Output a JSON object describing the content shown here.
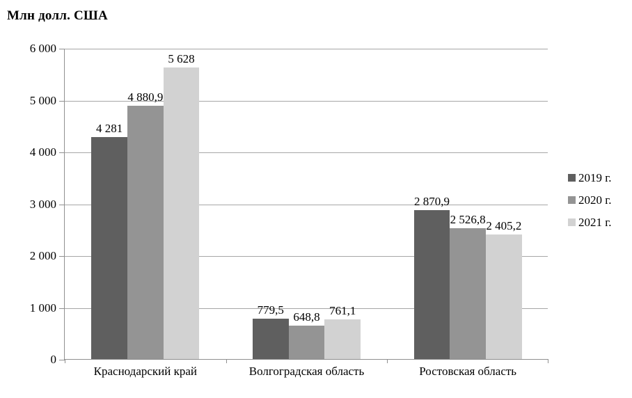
{
  "title": "Млн долл. США",
  "chart_data": {
    "type": "bar",
    "title": "Млн долл. США",
    "categories": [
      "Краснодарский край",
      "Волгоградская область",
      "Ростовская область"
    ],
    "series": [
      {
        "name": "2019 г.",
        "color": "#5f5f5f",
        "values": [
          4281,
          779.5,
          2870.9
        ],
        "labels": [
          "4 281",
          "779,5",
          "2 870,9"
        ]
      },
      {
        "name": "2020 г.",
        "color": "#949494",
        "values": [
          4880.9,
          648.8,
          2526.8
        ],
        "labels": [
          "4 880,9",
          "648,8",
          "2 526,8"
        ]
      },
      {
        "name": "2021 г.",
        "color": "#d2d2d2",
        "values": [
          5628,
          761.1,
          2405.2
        ],
        "labels": [
          "5 628",
          "761,1",
          "2 405,2"
        ]
      }
    ],
    "xlabel": "",
    "ylabel": "Млн долл. США",
    "ylim": [
      0,
      6000
    ],
    "ytick_interval": 1000,
    "ytick_labels": [
      "0",
      "1 000",
      "2 000",
      "3 000",
      "4 000",
      "5 000",
      "6 000"
    ],
    "grid": true,
    "legend_position": "right",
    "colors": {
      "axis": "#8f8f8f",
      "gridline": "#a6a6a6",
      "text": "#000000",
      "background": "#ffffff"
    }
  }
}
